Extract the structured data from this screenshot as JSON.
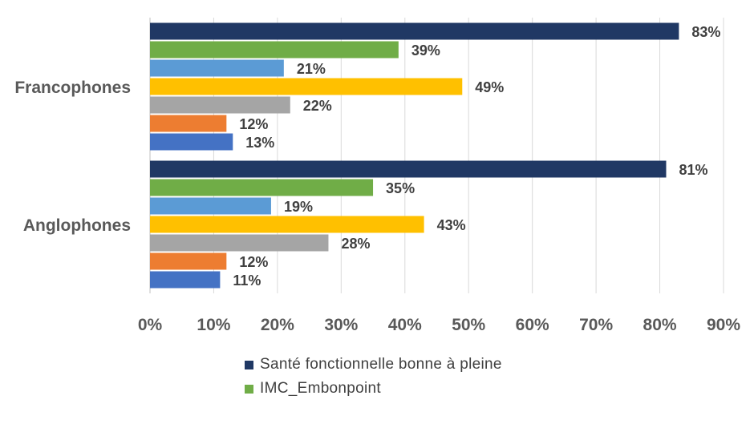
{
  "chart_data": {
    "type": "bar",
    "orientation": "horizontal",
    "categories": [
      "Francophones",
      "Anglophones"
    ],
    "series": [
      {
        "name": "Santé fonctionnelle bonne à pleine",
        "color": "#203864",
        "values": [
          83,
          81
        ],
        "labels": [
          "83%",
          "81%"
        ]
      },
      {
        "name": "IMC_Embonpoint",
        "color": "#70AD47",
        "values": [
          39,
          35
        ],
        "labels": [
          "39%",
          "35%"
        ]
      },
      {
        "color": "#5B9BD5",
        "values": [
          21,
          19
        ],
        "labels": [
          "21%",
          "19%"
        ]
      },
      {
        "color": "#FFC000",
        "values": [
          49,
          43
        ],
        "labels": [
          "49%",
          "43%"
        ]
      },
      {
        "color": "#A5A5A5",
        "values": [
          22,
          28
        ],
        "labels": [
          "22%",
          "28%"
        ]
      },
      {
        "color": "#ED7D31",
        "values": [
          12,
          12
        ],
        "labels": [
          "12%",
          "12%"
        ]
      },
      {
        "color": "#4472C4",
        "values": [
          13,
          11
        ],
        "labels": [
          "13%",
          "11%"
        ]
      }
    ],
    "xlim": [
      0,
      90
    ],
    "xticks": [
      "0%",
      "10%",
      "20%",
      "30%",
      "40%",
      "50%",
      "60%",
      "70%",
      "80%",
      "90%"
    ],
    "grid": true,
    "legend_position": "bottom"
  },
  "legend": [
    {
      "label": "Santé fonctionnelle bonne à pleine",
      "color": "#203864"
    },
    {
      "label": "IMC_Embonpoint",
      "color": "#70AD47"
    }
  ]
}
